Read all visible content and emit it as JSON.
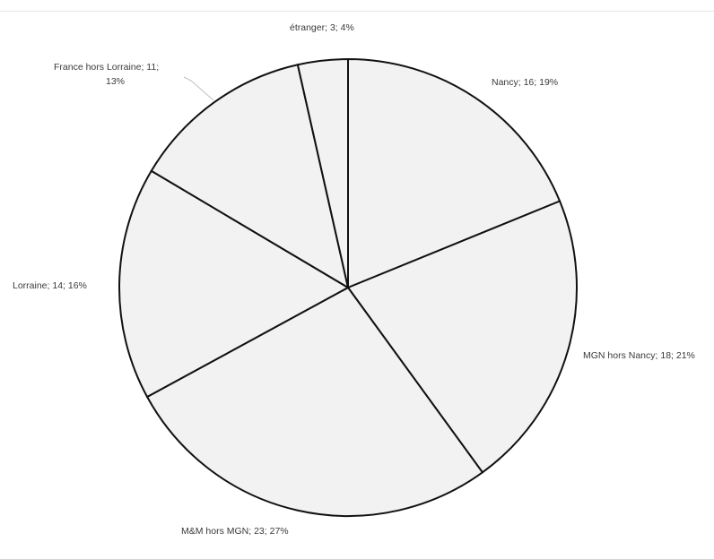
{
  "chart_data": {
    "type": "pie",
    "title": "",
    "slices": [
      {
        "category": "Nancy",
        "value": 16,
        "percent_label": "19%",
        "label": "Nancy; 16; 19%"
      },
      {
        "category": "MGN hors Nancy",
        "value": 18,
        "percent_label": "21%",
        "label": "MGN hors Nancy; 18; 21%"
      },
      {
        "category": "M&M hors MGN",
        "value": 23,
        "percent_label": "27%",
        "label": "M&M hors MGN; 23; 27%"
      },
      {
        "category": "Lorraine",
        "value": 14,
        "percent_label": "16%",
        "label": "Lorraine; 14; 16%"
      },
      {
        "category": "France hors Lorraine",
        "value": 11,
        "percent_label": "13%",
        "label_lines": [
          "France hors Lorraine; 11;",
          "13%"
        ]
      },
      {
        "category": "étranger",
        "value": 3,
        "percent_label": "4%",
        "label": "étranger; 3; 4%"
      }
    ],
    "start_angle": "12 o'clock",
    "direction": "clockwise",
    "slice_fill": "#f2f2f2",
    "slice_stroke": "#111111",
    "label_color": "#3a3a3a",
    "legend": "none"
  }
}
